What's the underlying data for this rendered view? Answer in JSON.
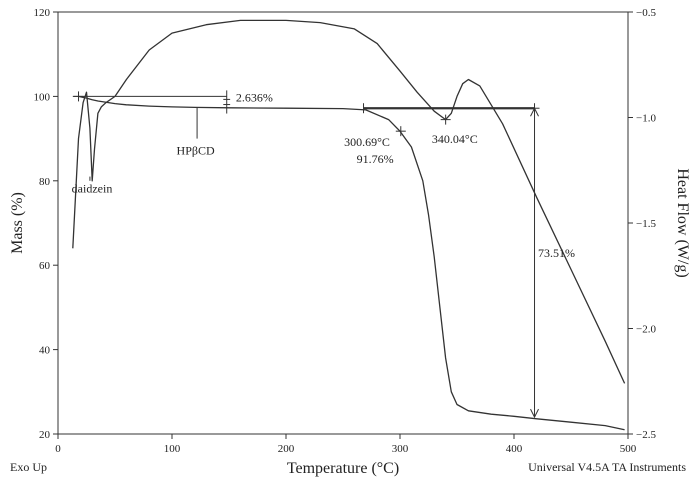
{
  "chart_data": {
    "type": "line",
    "xlabel": "Temperature (°C)",
    "ylabel_left": "Mass (%)",
    "ylabel_right": "Heat Flow (W/g)",
    "xlim": [
      0,
      500
    ],
    "ylim_left": [
      20,
      120
    ],
    "ylim_right": [
      -2.5,
      -0.5
    ],
    "x_ticks": [
      0,
      100,
      200,
      300,
      400,
      500
    ],
    "y_left_ticks": [
      20,
      40,
      60,
      80,
      100,
      120
    ],
    "y_right_ticks": [
      -2.5,
      -2.0,
      -1.5,
      -1.0,
      -0.5
    ],
    "y_right_tick_labels": [
      "−2.5",
      "−2.0",
      "−1.5",
      "−1.0",
      "−0.5"
    ],
    "grid": false,
    "footer_left": "Exo Up",
    "footer_right": "Universal V4.5A TA Instruments",
    "series": [
      {
        "axis": "left",
        "x": [
          18,
          25,
          30,
          35,
          40,
          50,
          60,
          80,
          100,
          120,
          150,
          200,
          250,
          270,
          290,
          300,
          310,
          320,
          325,
          330,
          335,
          340,
          345,
          350,
          360,
          380,
          400,
          420,
          450,
          480,
          497
        ],
        "y": [
          100,
          99.6,
          99.2,
          98.9,
          98.7,
          98.3,
          98.0,
          97.7,
          97.5,
          97.4,
          97.3,
          97.2,
          97.1,
          96.8,
          94.5,
          91.76,
          88,
          80,
          72,
          62,
          50,
          38,
          30,
          27,
          25.5,
          24.7,
          24.2,
          23.6,
          22.8,
          22,
          21
        ]
      },
      {
        "axis": "right",
        "x": [
          13,
          18,
          22,
          25,
          28,
          30,
          32,
          35,
          38,
          42,
          50,
          60,
          80,
          100,
          130,
          160,
          200,
          230,
          260,
          280,
          300,
          315,
          330,
          340,
          345,
          350,
          355,
          360,
          370,
          390,
          420,
          450,
          480,
          497
        ],
        "y": [
          -1.62,
          -1.1,
          -0.93,
          -0.88,
          -1.05,
          -1.3,
          -1.15,
          -0.98,
          -0.95,
          -0.93,
          -0.9,
          -0.82,
          -0.68,
          -0.6,
          -0.56,
          -0.54,
          -0.54,
          -0.55,
          -0.58,
          -0.65,
          -0.78,
          -0.88,
          -0.97,
          -1.01,
          -0.98,
          -0.9,
          -0.84,
          -0.82,
          -0.85,
          -1.03,
          -1.38,
          -1.72,
          -2.06,
          -2.26
        ]
      }
    ],
    "annotations": {
      "mass_loss_1": "2.636%",
      "onset_temp": "300.69°C",
      "onset_mass": "91.76%",
      "peak_temp": "340.04°C",
      "mass_loss_2": "73.51%",
      "daidzein": "daidzein",
      "hpbcd": "HPβCD"
    }
  }
}
